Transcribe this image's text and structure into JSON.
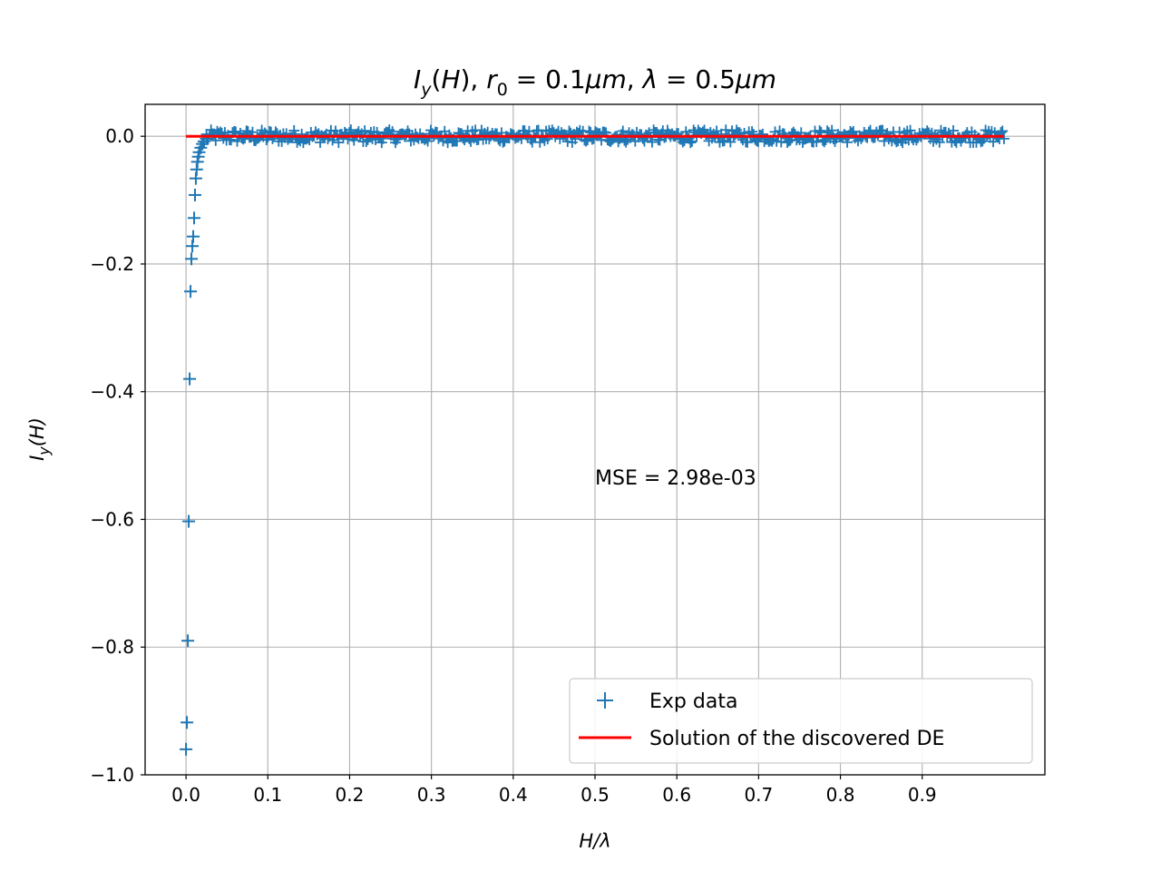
{
  "chart_data": {
    "type": "scatter",
    "title": "I_y(H), r_0 = 0.1μm, λ = 0.5μm",
    "xlabel": "H/λ",
    "ylabel": "I_y(H)",
    "xlim": [
      -0.05,
      1.05
    ],
    "ylim": [
      -1.0,
      0.05
    ],
    "x_ticks": [
      0.0,
      0.1,
      0.2,
      0.3,
      0.4,
      0.5,
      0.6,
      0.7,
      0.8,
      0.9
    ],
    "x_tick_labels": [
      "0.0",
      "0.1",
      "0.2",
      "0.3",
      "0.4",
      "0.5",
      "0.6",
      "0.7",
      "0.8",
      "0.9"
    ],
    "y_ticks": [
      0.0,
      -0.2,
      -0.4,
      -0.6,
      -0.8,
      -1.0
    ],
    "y_tick_labels": [
      "0.0",
      "−0.2",
      "−0.4",
      "−0.6",
      "−0.8",
      "−1.0"
    ],
    "grid": true,
    "legend_position": "lower-right",
    "annotation": "MSE = 2.98e-03",
    "series": [
      {
        "name": "Exp data",
        "marker": "+",
        "color": "#1f77b4",
        "x": [
          0.0,
          0.0011,
          0.0022,
          0.0033,
          0.0044,
          0.0055,
          0.0066,
          0.0077,
          0.0088,
          0.0099,
          0.011,
          0.012,
          0.013,
          0.014,
          0.015,
          0.016,
          0.018,
          0.02,
          0.022,
          0.025
        ],
        "y": [
          -0.96,
          -0.918,
          -0.79,
          -0.603,
          -0.38,
          -0.243,
          -0.192,
          -0.172,
          -0.157,
          -0.128,
          -0.092,
          -0.066,
          -0.052,
          -0.04,
          -0.032,
          -0.025,
          -0.018,
          -0.012,
          -0.008,
          -0.004
        ],
        "dense_noise_region": {
          "x_start": 0.025,
          "x_end": 1.0,
          "y_center": 0.0,
          "y_amplitude": 0.01
        }
      },
      {
        "name": "Solution of the discovered DE",
        "style": "line",
        "color": "#ff0000",
        "x": [
          0.0,
          1.0
        ],
        "y": [
          0.0,
          0.0
        ]
      }
    ]
  }
}
